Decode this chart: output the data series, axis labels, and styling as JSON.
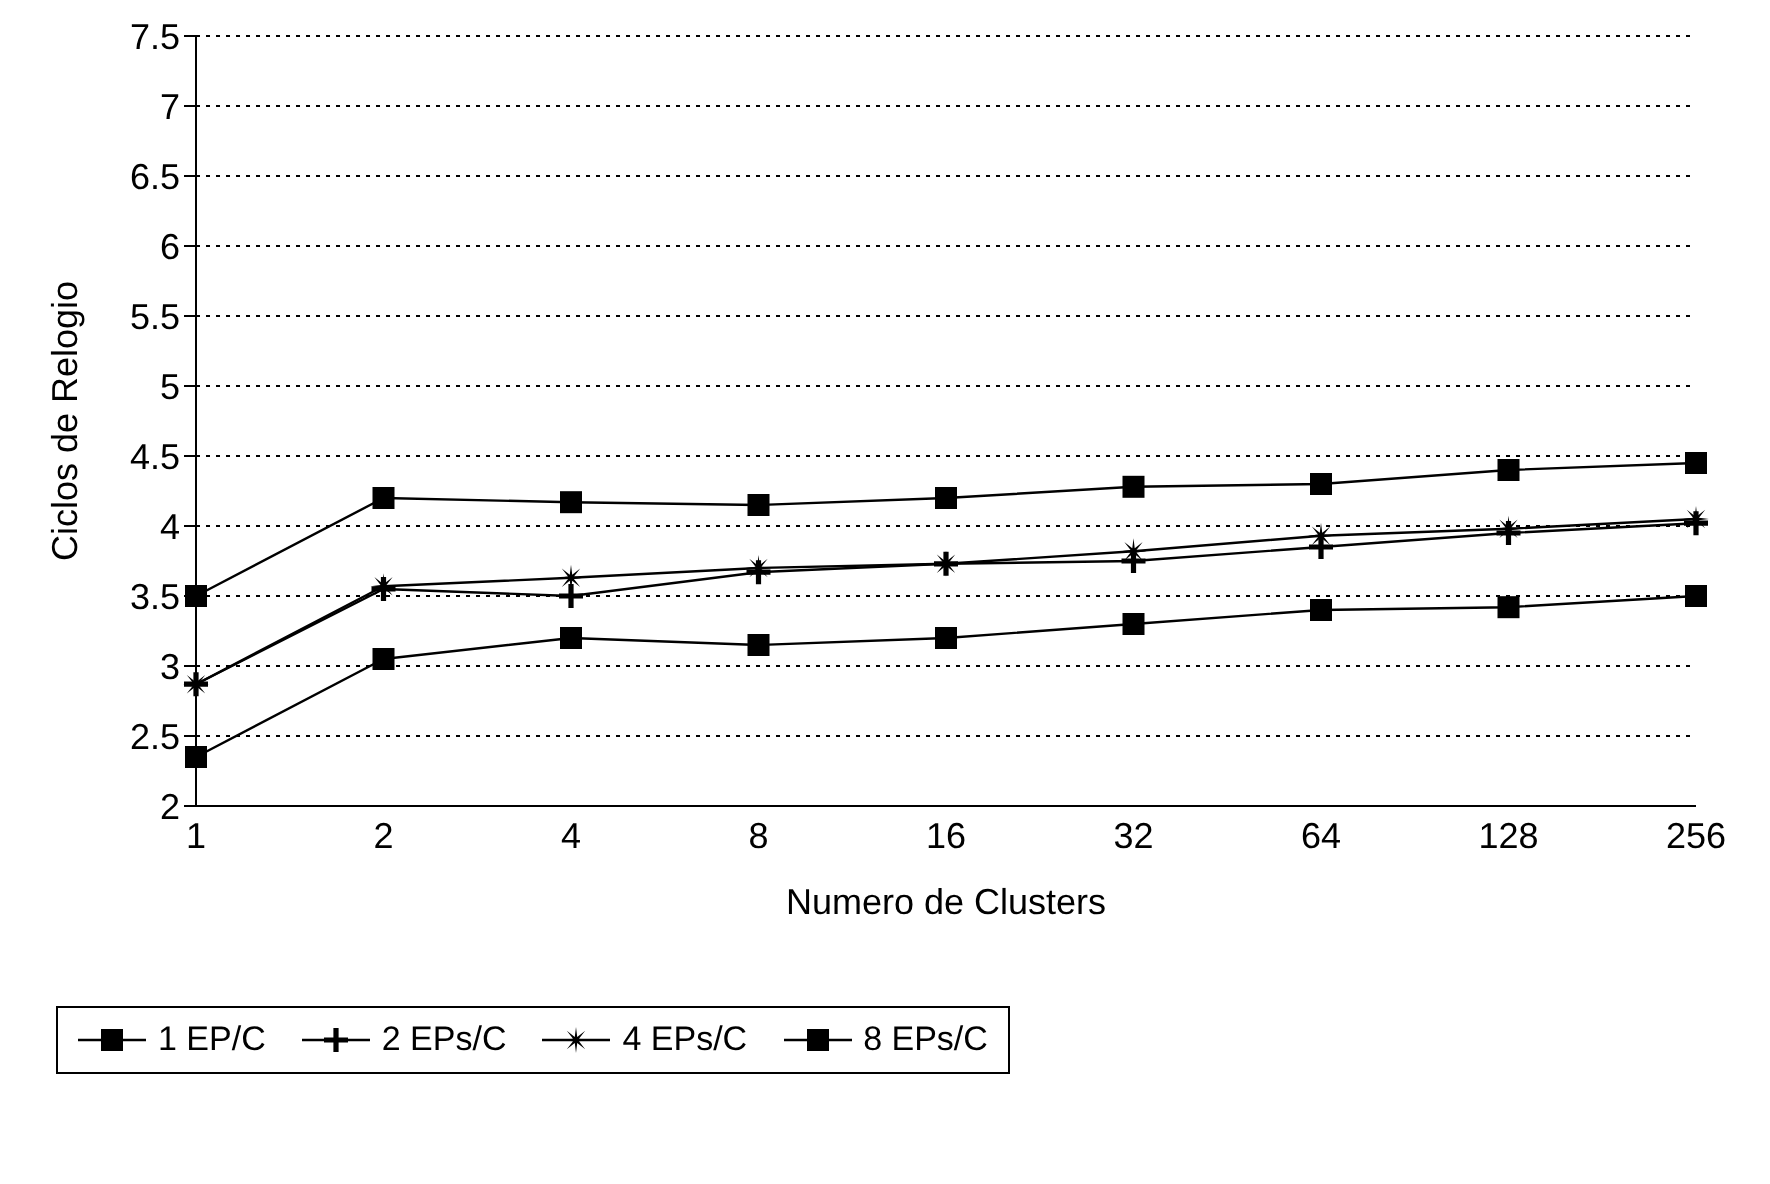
{
  "chart_data": {
    "type": "line",
    "xlabel": "Numero de Clusters",
    "ylabel": "Ciclos de Relogio",
    "categories": [
      "1",
      "2",
      "4",
      "8",
      "16",
      "32",
      "64",
      "128",
      "256"
    ],
    "series": [
      {
        "name": "1 EP/C",
        "color": "#000000",
        "marker": "square",
        "values": [
          2.35,
          3.05,
          3.2,
          3.15,
          3.2,
          3.3,
          3.4,
          3.42,
          3.5
        ]
      },
      {
        "name": "2 EPs/C",
        "color": "#000000",
        "marker": "cross",
        "values": [
          2.87,
          3.55,
          3.5,
          3.67,
          3.73,
          3.75,
          3.85,
          3.95,
          4.02
        ]
      },
      {
        "name": "4 EPs/C",
        "color": "#000000",
        "marker": "star",
        "values": [
          2.87,
          3.57,
          3.63,
          3.7,
          3.73,
          3.82,
          3.93,
          3.98,
          4.05
        ]
      },
      {
        "name": "8 EPs/C",
        "color": "#000000",
        "marker": "square",
        "values": [
          3.5,
          4.2,
          4.17,
          4.15,
          4.2,
          4.28,
          4.3,
          4.4,
          4.45
        ]
      }
    ],
    "ylim": [
      2,
      7.5
    ],
    "yticks": [
      2,
      2.5,
      3,
      3.5,
      4,
      4.5,
      5,
      5.5,
      6,
      6.5,
      7,
      7.5
    ],
    "grid": "y",
    "legend": "bottom",
    "line_style": "solid"
  }
}
